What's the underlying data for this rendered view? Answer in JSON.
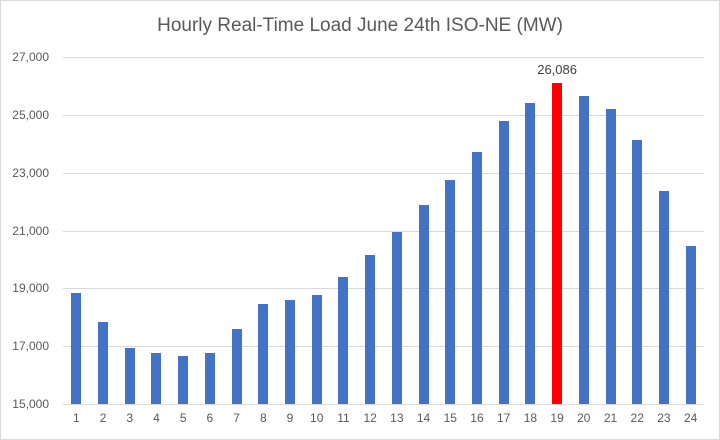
{
  "chart_data": {
    "type": "bar",
    "title": "Hourly Real-Time Load June 24th ISO-NE (MW)",
    "xlabel": "",
    "ylabel": "",
    "categories": [
      "1",
      "2",
      "3",
      "4",
      "5",
      "6",
      "7",
      "8",
      "9",
      "10",
      "11",
      "12",
      "13",
      "14",
      "15",
      "16",
      "17",
      "18",
      "19",
      "20",
      "21",
      "22",
      "23",
      "24"
    ],
    "values": [
      18850,
      17840,
      16940,
      16750,
      16650,
      16780,
      17600,
      18470,
      18580,
      18770,
      19380,
      20150,
      20950,
      21870,
      22760,
      23700,
      24770,
      25400,
      26086,
      25650,
      25200,
      24120,
      22350,
      20470
    ],
    "ylim": [
      15000,
      27000
    ],
    "y_ticks": [
      15000,
      17000,
      19000,
      21000,
      23000,
      25000,
      27000
    ],
    "y_tick_labels": [
      "15,000",
      "17,000",
      "19,000",
      "21,000",
      "23,000",
      "25,000",
      "27,000"
    ],
    "grid": true,
    "legend": "none",
    "bar_color": "#4472C4",
    "highlight": {
      "category": "19",
      "color": "#FF0000",
      "data_label": "26,086"
    }
  },
  "colors": {
    "background": "#FFFFFF",
    "border": "#D9D9D9",
    "gridline": "#D9D9D9",
    "axis_text": "#595959",
    "title_text": "#595959",
    "data_label_text": "#404040"
  }
}
